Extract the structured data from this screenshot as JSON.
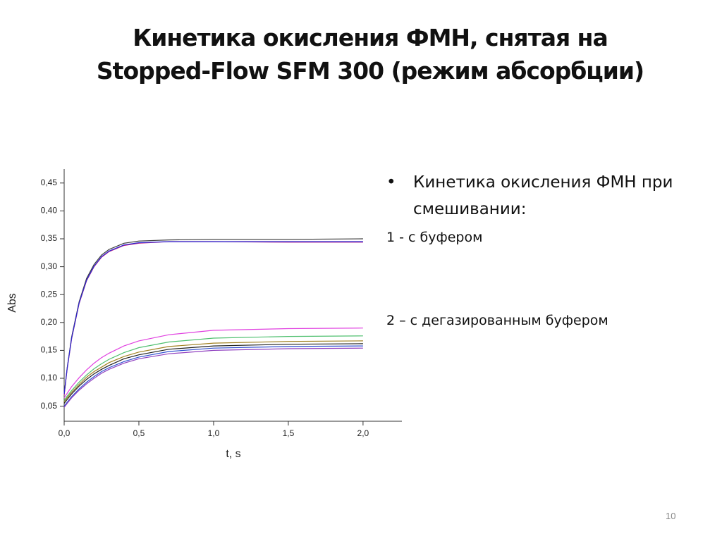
{
  "title": [
    "Кинетика окисления  ФМН, снятая на",
    "Stopped-Flow SFM 300 (режим абсорбции)"
  ],
  "bullet": "Кинетика окисления ФМН при смешивании:",
  "notes": [
    "1 -  с буфером",
    "2 – с дегазированным буфером"
  ],
  "page_number": "10",
  "chart_data": {
    "type": "line",
    "x_label": "t, s",
    "y_label": "Abs",
    "x": [
      0,
      0.02,
      0.05,
      0.1,
      0.15,
      0.2,
      0.25,
      0.3,
      0.4,
      0.5,
      0.7,
      1.0,
      1.5,
      2.0
    ],
    "xlim": [
      0,
      2.26
    ],
    "ylim": [
      0.023,
      0.475
    ],
    "xticks": [
      {
        "value": 0,
        "label": "0,0"
      },
      {
        "value": 0.5,
        "label": "0,5"
      },
      {
        "value": 1.0,
        "label": "1,0"
      },
      {
        "value": 1.5,
        "label": "1,5"
      },
      {
        "value": 2.0,
        "label": "2,0"
      }
    ],
    "yticks": [
      {
        "value": 0.05,
        "label": "0,05"
      },
      {
        "value": 0.1,
        "label": "0,10"
      },
      {
        "value": 0.15,
        "label": "0,15"
      },
      {
        "value": 0.2,
        "label": "0,20"
      },
      {
        "value": 0.25,
        "label": "0,25"
      },
      {
        "value": 0.3,
        "label": "0,30"
      },
      {
        "value": 0.35,
        "label": "0,35"
      },
      {
        "value": 0.4,
        "label": "0,40"
      },
      {
        "value": 0.45,
        "label": "0,45"
      }
    ],
    "series": [
      {
        "color": "#3a3a3a",
        "values": [
          0.07,
          0.118,
          0.174,
          0.237,
          0.279,
          0.304,
          0.321,
          0.331,
          0.342,
          0.346,
          0.348,
          0.349,
          0.349,
          0.35
        ]
      },
      {
        "color": "#c0208a",
        "values": [
          0.07,
          0.116,
          0.171,
          0.234,
          0.275,
          0.3,
          0.317,
          0.327,
          0.338,
          0.342,
          0.345,
          0.345,
          0.344,
          0.344
        ]
      },
      {
        "color": "#2a2ad0",
        "values": [
          0.072,
          0.117,
          0.172,
          0.235,
          0.276,
          0.301,
          0.318,
          0.328,
          0.339,
          0.343,
          0.345,
          0.345,
          0.345,
          0.345
        ]
      },
      {
        "color": "#e040e0",
        "values": [
          0.065,
          0.073,
          0.085,
          0.101,
          0.115,
          0.127,
          0.137,
          0.145,
          0.158,
          0.167,
          0.178,
          0.186,
          0.189,
          0.19
        ]
      },
      {
        "color": "#50c070",
        "values": [
          0.06,
          0.068,
          0.078,
          0.093,
          0.106,
          0.117,
          0.126,
          0.134,
          0.146,
          0.155,
          0.165,
          0.172,
          0.175,
          0.176
        ]
      },
      {
        "color": "#a08020",
        "values": [
          0.058,
          0.065,
          0.075,
          0.089,
          0.102,
          0.112,
          0.12,
          0.128,
          0.139,
          0.147,
          0.157,
          0.163,
          0.166,
          0.167
        ]
      },
      {
        "color": "#202020",
        "values": [
          0.055,
          0.062,
          0.072,
          0.086,
          0.098,
          0.108,
          0.116,
          0.123,
          0.135,
          0.142,
          0.152,
          0.158,
          0.161,
          0.162
        ]
      },
      {
        "color": "#3050d0",
        "values": [
          0.05,
          0.057,
          0.067,
          0.081,
          0.093,
          0.103,
          0.112,
          0.119,
          0.13,
          0.138,
          0.148,
          0.154,
          0.157,
          0.158
        ]
      },
      {
        "color": "#9040c0",
        "values": [
          0.048,
          0.055,
          0.065,
          0.0785,
          0.09,
          0.1,
          0.109,
          0.116,
          0.127,
          0.135,
          0.144,
          0.15,
          0.153,
          0.154
        ]
      }
    ]
  }
}
